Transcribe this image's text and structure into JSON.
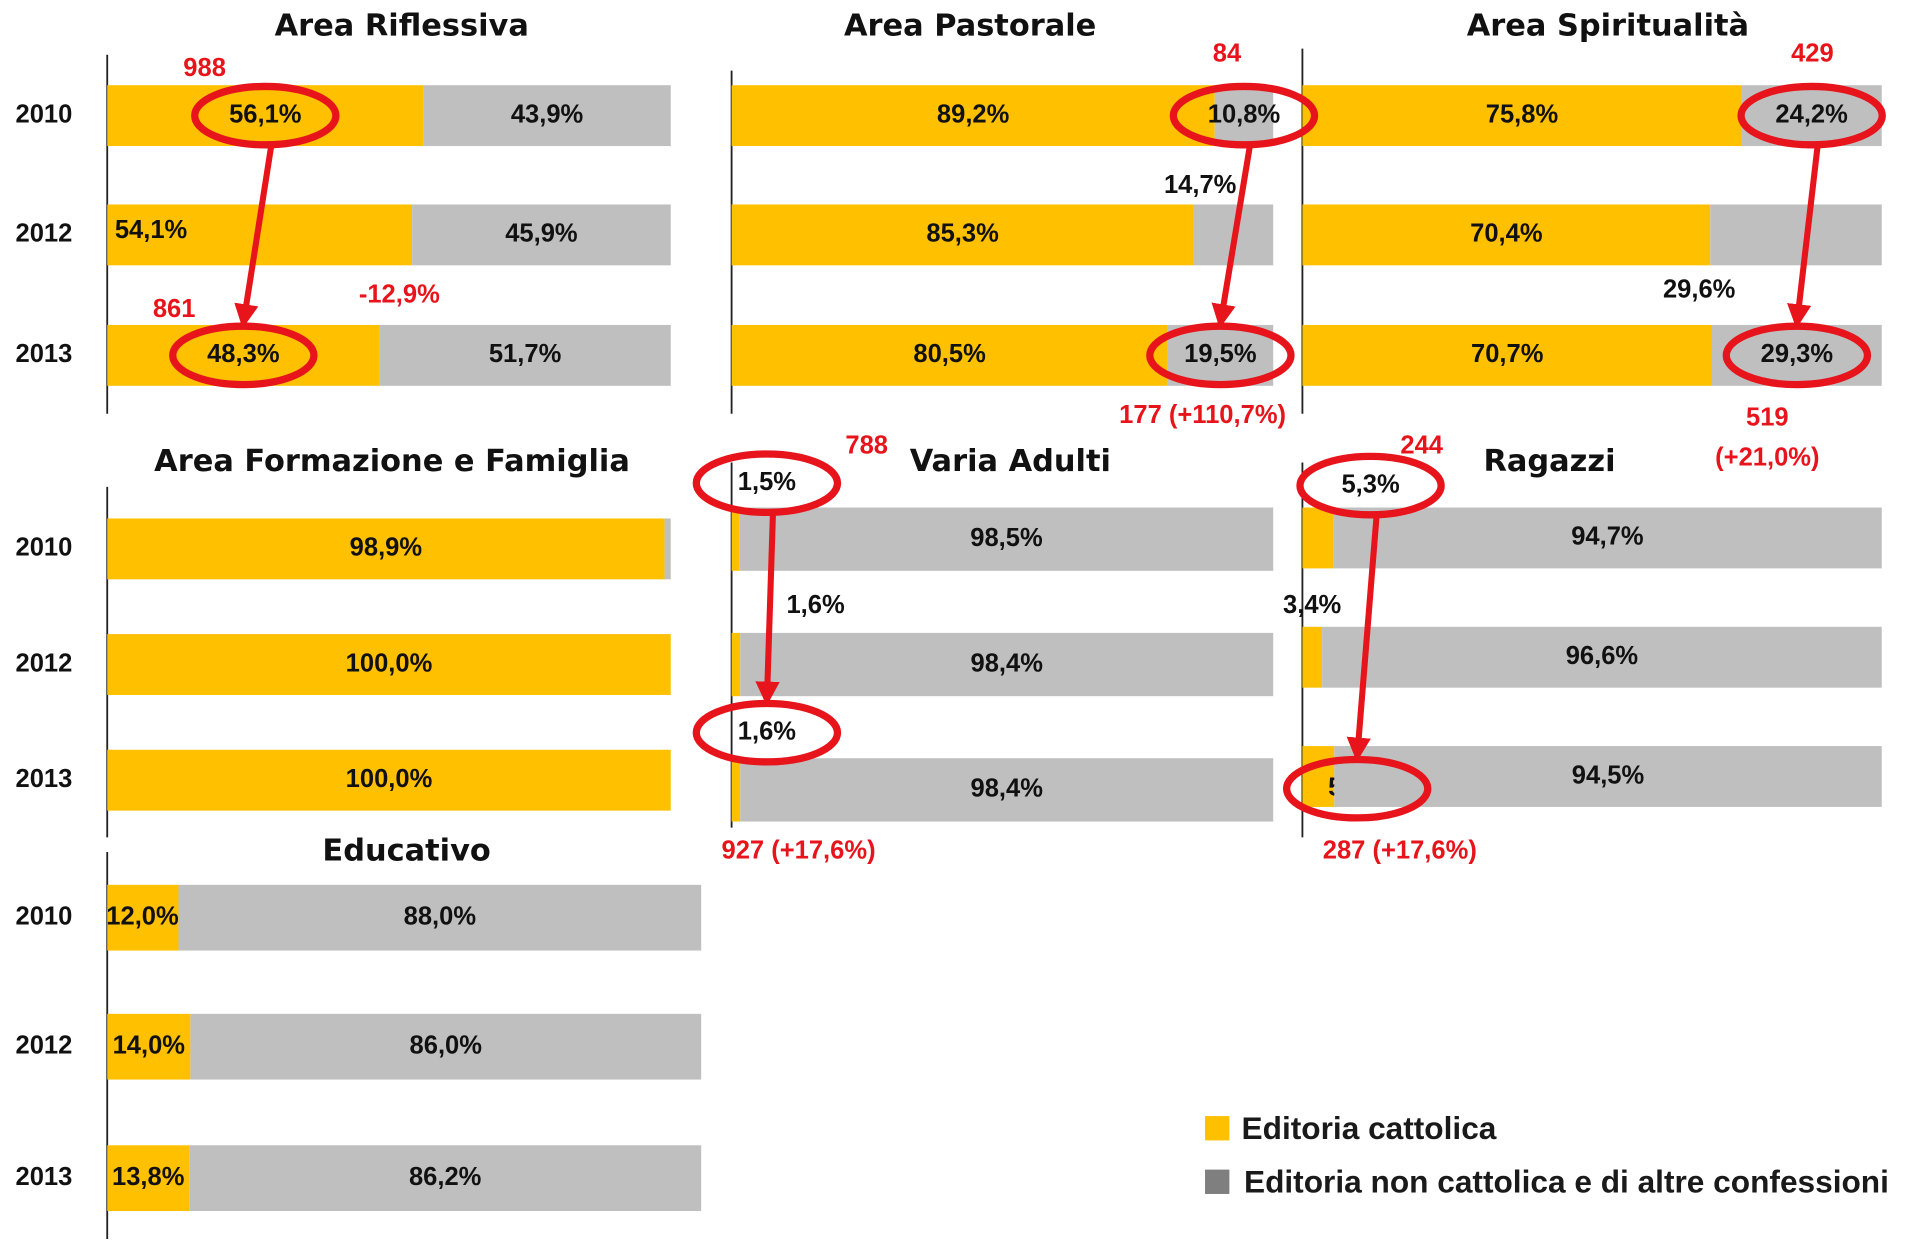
{
  "chart_data": [
    {
      "type": "bar",
      "title": "Area Riflessiva",
      "categories": [
        "2010",
        "2012",
        "2013"
      ],
      "xlim": [
        0,
        100
      ],
      "series": [
        {
          "color": "#ffc000",
          "values": [
            56.1,
            54.1,
            48.3
          ],
          "value_labels": [
            "56,1%",
            "54,1%",
            "48,3%"
          ]
        },
        {
          "color": "#bfbfbf",
          "values": [
            43.9,
            45.9,
            51.7
          ],
          "value_labels": [
            "43,9%",
            "45,9%",
            "51,7%"
          ]
        }
      ],
      "annotations": [
        "988",
        "861",
        "-12,9%"
      ]
    },
    {
      "type": "bar",
      "title": "Area Pastorale",
      "categories": [
        null,
        null,
        null
      ],
      "xlim": [
        0,
        100
      ],
      "series": [
        {
          "color": "#ffc000",
          "values": [
            89.2,
            85.3,
            80.5
          ],
          "value_labels": [
            "89,2%",
            "85,3%",
            "80,5%"
          ]
        },
        {
          "color": "#bfbfbf",
          "values": [
            10.8,
            14.7,
            19.5
          ],
          "value_labels": [
            "10,8%",
            "14,7%",
            "19,5%"
          ]
        }
      ],
      "annotations": [
        "84",
        "177 (+110,7%)"
      ]
    },
    {
      "type": "bar",
      "title": "Area Spiritualità",
      "categories": [
        null,
        null,
        null
      ],
      "xlim": [
        0,
        100
      ],
      "series": [
        {
          "color": "#ffc000",
          "values": [
            75.8,
            70.4,
            70.7
          ],
          "value_labels": [
            "75,8%",
            "70,4%",
            "70,7%"
          ]
        },
        {
          "color": "#bfbfbf",
          "values": [
            24.2,
            29.6,
            29.3
          ],
          "value_labels": [
            "24,2%",
            "29,6%",
            "29,3%"
          ]
        }
      ],
      "annotations": [
        "429",
        "519",
        "(+21,0%)"
      ]
    },
    {
      "type": "bar",
      "title": "Area Formazione e Famiglia",
      "categories": [
        "2010",
        "2012",
        "2013"
      ],
      "xlim": [
        0,
        100
      ],
      "series": [
        {
          "color": "#ffc000",
          "values": [
            98.9,
            100,
            100
          ],
          "value_labels": [
            "98,9%",
            "100,0%",
            "100,0%"
          ]
        },
        {
          "color": "#bfbfbf",
          "values": [
            1.1,
            0,
            0
          ],
          "value_labels": [
            null,
            null,
            null
          ]
        }
      ],
      "annotations": []
    },
    {
      "type": "bar",
      "title": "Varia Adulti",
      "categories": [
        null,
        null,
        null
      ],
      "xlim": [
        0,
        100
      ],
      "series": [
        {
          "color": "#ffc000",
          "values": [
            1.5,
            1.6,
            1.6
          ],
          "value_labels": [
            "1,5%",
            "1,6%",
            "1,6%"
          ]
        },
        {
          "color": "#bfbfbf",
          "values": [
            98.5,
            98.4,
            98.4
          ],
          "value_labels": [
            "98,5%",
            "98,4%",
            "98,4%"
          ]
        }
      ],
      "annotations": [
        "788",
        "927 (+17,6%)"
      ]
    },
    {
      "type": "bar",
      "title": "Ragazzi",
      "categories": [
        null,
        null,
        null
      ],
      "xlim": [
        0,
        100
      ],
      "series": [
        {
          "color": "#ffc000",
          "values": [
            5.3,
            3.4,
            5.5
          ],
          "value_labels": [
            "5,3%",
            "3,4%",
            "5,5%"
          ]
        },
        {
          "color": "#bfbfbf",
          "values": [
            94.7,
            96.6,
            94.5
          ],
          "value_labels": [
            "94,7%",
            "96,6%",
            "94,5%"
          ]
        }
      ],
      "annotations": [
        "244",
        "287 (+17,6%)"
      ]
    },
    {
      "type": "bar",
      "title": "Educativo",
      "categories": [
        "2010",
        "2012",
        "2013"
      ],
      "xlim": [
        0,
        100
      ],
      "series": [
        {
          "color": "#ffc000",
          "values": [
            12.0,
            14.0,
            13.8
          ],
          "value_labels": [
            "12,0%",
            "14,0%",
            "13,8%"
          ]
        },
        {
          "color": "#bfbfbf",
          "values": [
            88.0,
            86.0,
            86.2
          ],
          "value_labels": [
            "88,0%",
            "86,0%",
            "86,2%"
          ]
        }
      ],
      "annotations": []
    }
  ],
  "legend": [
    {
      "name": "Editoria cattolica",
      "color": "#ffc000"
    },
    {
      "name": "Editoria non cattolica e di altre confessioni",
      "color": "#7f7f7f"
    }
  ]
}
